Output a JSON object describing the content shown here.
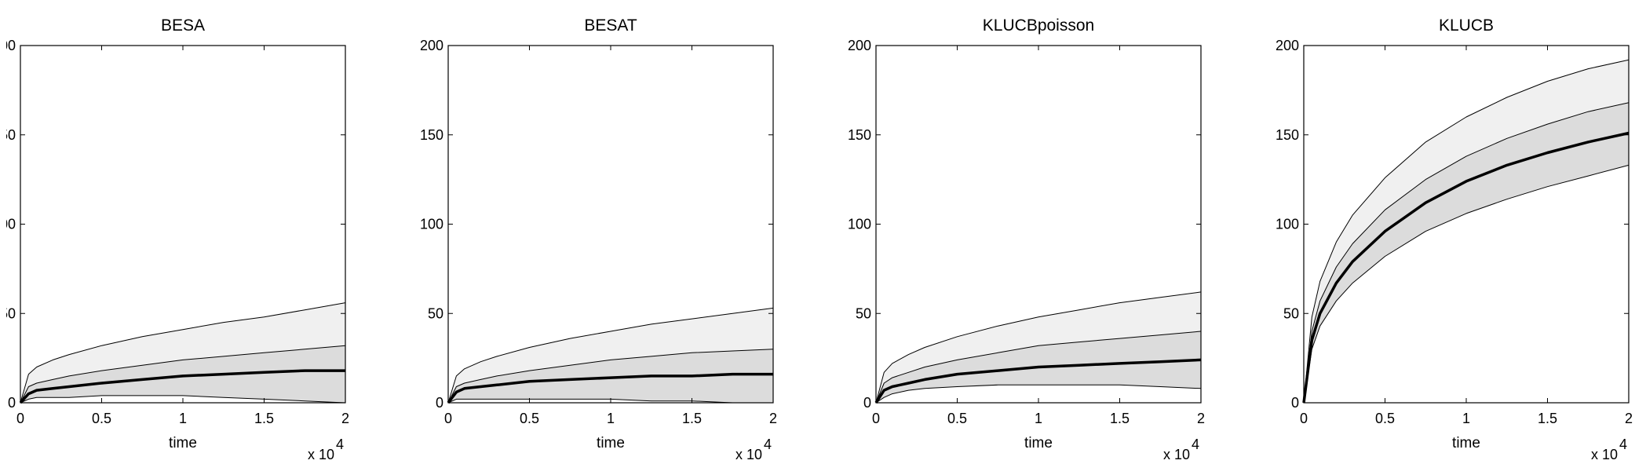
{
  "chart_data": [
    {
      "type": "area",
      "title": "BESA",
      "xlabel": "time",
      "x_exponent_label": "x 10",
      "x_exponent_power": "4",
      "xlim": [
        0,
        2
      ],
      "ylim": [
        0,
        200
      ],
      "xticks": [
        "0",
        "0.5",
        "1",
        "1.5",
        "2"
      ],
      "yticks": [
        "00",
        "50",
        "00",
        "50",
        "0"
      ],
      "x": [
        0,
        0.05,
        0.1,
        0.2,
        0.3,
        0.5,
        0.75,
        1.0,
        1.25,
        1.5,
        1.75,
        2.0
      ],
      "series": [
        {
          "values": [
            0,
            16,
            20,
            24,
            27,
            32,
            37,
            41,
            45,
            48,
            52,
            56
          ]
        },
        {
          "values": [
            0,
            9,
            11,
            13,
            15,
            18,
            21,
            24,
            26,
            28,
            30,
            32
          ]
        },
        {
          "values": [
            0,
            5,
            7,
            8,
            9,
            11,
            13,
            15,
            16,
            17,
            18,
            18
          ]
        },
        {
          "values": [
            0,
            2,
            3,
            3,
            3,
            4,
            4,
            4,
            3,
            2,
            1,
            0
          ]
        }
      ],
      "band_colors": [
        "#f0f0f0",
        "#dcdcdc"
      ]
    },
    {
      "type": "area",
      "title": "BESAT",
      "xlabel": "time",
      "x_exponent_label": "x 10",
      "x_exponent_power": "4",
      "xlim": [
        0,
        2
      ],
      "ylim": [
        0,
        200
      ],
      "xticks": [
        "0",
        "0.5",
        "1",
        "1.5",
        "2"
      ],
      "yticks": [
        "200",
        "150",
        "100",
        "50",
        "0"
      ],
      "x": [
        0,
        0.05,
        0.1,
        0.2,
        0.3,
        0.5,
        0.75,
        1.0,
        1.25,
        1.5,
        1.75,
        2.0
      ],
      "series": [
        {
          "values": [
            0,
            15,
            19,
            23,
            26,
            31,
            36,
            40,
            44,
            47,
            50,
            53
          ]
        },
        {
          "values": [
            0,
            9,
            11,
            13,
            15,
            18,
            21,
            24,
            26,
            28,
            29,
            30
          ]
        },
        {
          "values": [
            0,
            6,
            8,
            9,
            10,
            12,
            13,
            14,
            15,
            15,
            16,
            16
          ]
        },
        {
          "values": [
            0,
            2,
            2,
            2,
            2,
            2,
            2,
            2,
            1,
            1,
            0,
            0
          ]
        }
      ],
      "band_colors": [
        "#f0f0f0",
        "#dcdcdc"
      ]
    },
    {
      "type": "area",
      "title": "KLUCBpoisson",
      "xlabel": "time",
      "x_exponent_label": "x 10",
      "x_exponent_power": "4",
      "xlim": [
        0,
        2
      ],
      "ylim": [
        0,
        200
      ],
      "xticks": [
        "0",
        "0.5",
        "1",
        "1.5",
        "2"
      ],
      "yticks": [
        "200",
        "150",
        "100",
        "50",
        "0"
      ],
      "x": [
        0,
        0.05,
        0.1,
        0.2,
        0.3,
        0.5,
        0.75,
        1.0,
        1.25,
        1.5,
        1.75,
        2.0
      ],
      "series": [
        {
          "values": [
            0,
            17,
            22,
            27,
            31,
            37,
            43,
            48,
            52,
            56,
            59,
            62
          ]
        },
        {
          "values": [
            0,
            11,
            14,
            17,
            20,
            24,
            28,
            32,
            34,
            36,
            38,
            40
          ]
        },
        {
          "values": [
            0,
            7,
            9,
            11,
            13,
            16,
            18,
            20,
            21,
            22,
            23,
            24
          ]
        },
        {
          "values": [
            0,
            3,
            5,
            7,
            8,
            9,
            10,
            10,
            10,
            10,
            9,
            8
          ]
        }
      ],
      "band_colors": [
        "#f0f0f0",
        "#dcdcdc"
      ]
    },
    {
      "type": "area",
      "title": "KLUCB",
      "xlabel": "time",
      "x_exponent_label": "x 10",
      "x_exponent_power": "4",
      "xlim": [
        0,
        2
      ],
      "ylim": [
        0,
        200
      ],
      "xticks": [
        "0",
        "0.5",
        "1",
        "1.5",
        "2"
      ],
      "yticks": [
        "200",
        "150",
        "100",
        "50",
        "0"
      ],
      "x": [
        0,
        0.05,
        0.1,
        0.2,
        0.3,
        0.5,
        0.75,
        1.0,
        1.25,
        1.5,
        1.75,
        2.0
      ],
      "series": [
        {
          "values": [
            0,
            48,
            68,
            90,
            105,
            126,
            146,
            160,
            171,
            180,
            187,
            192
          ]
        },
        {
          "values": [
            0,
            40,
            57,
            76,
            89,
            108,
            125,
            138,
            148,
            156,
            163,
            168
          ]
        },
        {
          "values": [
            0,
            35,
            50,
            67,
            79,
            96,
            112,
            124,
            133,
            140,
            146,
            151
          ]
        },
        {
          "values": [
            0,
            30,
            43,
            57,
            67,
            82,
            96,
            106,
            114,
            121,
            127,
            133
          ]
        }
      ],
      "band_colors": [
        "#f0f0f0",
        "#dcdcdc"
      ]
    }
  ]
}
